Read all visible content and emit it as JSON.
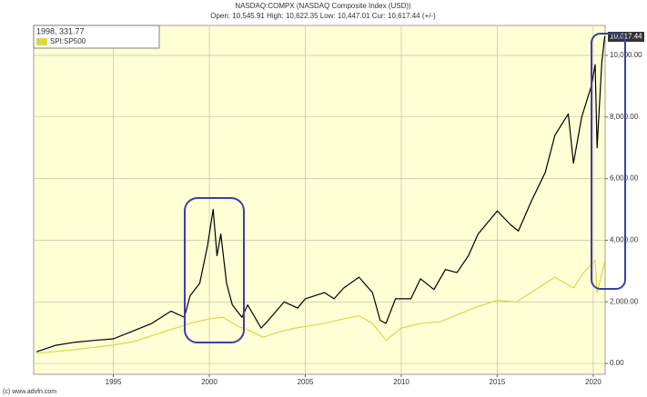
{
  "chart_data": {
    "type": "line",
    "title": "NASDAQ:COMPX (NASDAQ Composite Index (USD))",
    "subtitle": "Open: 10,545.91 High: 10,622.35 Low: 10,447.01 Cur: 10,617.44 (+/-)",
    "cursor_label": "1998, 331.77",
    "last_value_label": "10,617.44",
    "copyright": "(c) www.advfn.com",
    "series": [
      {
        "color": "#000000",
        "x": [
          1991,
          1992,
          1993,
          1994,
          1995,
          1996,
          1997,
          1998,
          1998.7,
          1999,
          1999.5,
          1999.9,
          2000.2,
          2000.4,
          2000.6,
          2000.9,
          2001.2,
          2001.7,
          2002,
          2002.7,
          2003,
          2003.9,
          2004.6,
          2005,
          2006,
          2006.5,
          2007,
          2007.8,
          2008.5,
          2008.9,
          2009.2,
          2009.7,
          2010.5,
          2011,
          2011.7,
          2012.3,
          2012.9,
          2013.5,
          2014,
          2015,
          2015.7,
          2016.1,
          2016.8,
          2017.5,
          2018,
          2018.7,
          2018.97,
          2019.4,
          2019.9,
          2020.1,
          2020.2,
          2020.45,
          2020.6
        ],
        "values": [
          380,
          590,
          690,
          750,
          800,
          1050,
          1300,
          1700,
          1500,
          2200,
          2600,
          3800,
          5000,
          3500,
          4200,
          2600,
          1900,
          1500,
          1900,
          1150,
          1350,
          2000,
          1800,
          2100,
          2300,
          2100,
          2450,
          2800,
          2300,
          1400,
          1300,
          2100,
          2100,
          2750,
          2400,
          3050,
          2950,
          3500,
          4200,
          4950,
          4500,
          4300,
          5300,
          6200,
          7400,
          8100,
          6500,
          8000,
          9000,
          9700,
          7000,
          9800,
          10617.44
        ]
      },
      {
        "name": "SPI:SP500",
        "color": "#d8d84a",
        "x": [
          1991,
          1993,
          1995,
          1996,
          1997,
          1998,
          1999,
          2000,
          2000.7,
          2001.5,
          2002,
          2002.8,
          2003.5,
          2004.5,
          2006,
          2007,
          2007.8,
          2008.5,
          2009.2,
          2010,
          2011,
          2012,
          2013,
          2014,
          2015,
          2016,
          2017,
          2018,
          2018.97,
          2019.5,
          2020.1,
          2020.2,
          2020.6
        ],
        "values": [
          330,
          450,
          600,
          700,
          900,
          1100,
          1300,
          1450,
          1500,
          1200,
          1100,
          850,
          1000,
          1150,
          1300,
          1450,
          1550,
          1300,
          750,
          1150,
          1300,
          1350,
          1600,
          1850,
          2050,
          2000,
          2400,
          2800,
          2450,
          2950,
          3350,
          2300,
          3300
        ]
      }
    ],
    "xlim": [
      1990.85,
      2020.62
    ],
    "xticks": [
      1995,
      2000,
      2005,
      2010,
      2015,
      2020
    ],
    "ylim": [
      -350,
      10970
    ],
    "yticks": [
      {
        "value": 0,
        "label": "0.00"
      },
      {
        "value": 2000,
        "label": "2,000.00"
      },
      {
        "value": 4000,
        "label": "4,000.00"
      },
      {
        "value": 6000,
        "label": "6,000.00"
      },
      {
        "value": 8000,
        "label": "8,000.00"
      },
      {
        "value": 10000,
        "label": "10,000.00"
      }
    ],
    "grid": true,
    "background": "#ffffd6"
  }
}
